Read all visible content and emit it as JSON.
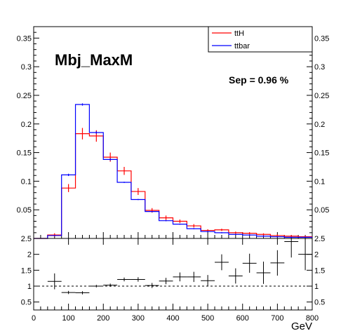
{
  "chart_data": [
    {
      "type": "histogram",
      "title": "Mbj_MaxM",
      "annotation": "Sep = 0.96 %",
      "xlabel": "GeV",
      "ylabel": "",
      "xlim": [
        0,
        800
      ],
      "ylim": [
        0,
        0.37
      ],
      "y_ticks": [
        "0.05",
        "0.1",
        "0.15",
        "0.2",
        "0.25",
        "0.3",
        "0.35"
      ],
      "y_tick_values": [
        0.05,
        0.1,
        0.15,
        0.2,
        0.25,
        0.3,
        0.35
      ],
      "legend": {
        "placement": "top-right"
      },
      "bin_edges": [
        0,
        40,
        80,
        120,
        160,
        200,
        240,
        280,
        320,
        360,
        400,
        440,
        480,
        520,
        560,
        600,
        640,
        680,
        720,
        760,
        800
      ],
      "series": [
        {
          "name": "ttH",
          "color": "#ff0000",
          "values": [
            0.0,
            0.006,
            0.088,
            0.183,
            0.179,
            0.142,
            0.118,
            0.082,
            0.049,
            0.036,
            0.03,
            0.022,
            0.014,
            0.015,
            0.01,
            0.009,
            0.007,
            0.005,
            0.004,
            0.003
          ],
          "errors": [
            0.0,
            0.003,
            0.007,
            0.01,
            0.01,
            0.008,
            0.007,
            0.006,
            0.004,
            0.004,
            0.003,
            0.003,
            0.002,
            0.002,
            0.002,
            0.002,
            0.002,
            0.002,
            0.002,
            0.002
          ]
        },
        {
          "name": "ttbar",
          "color": "#0000ff",
          "values": [
            0.0,
            0.005,
            0.111,
            0.234,
            0.185,
            0.138,
            0.098,
            0.068,
            0.047,
            0.031,
            0.025,
            0.017,
            0.012,
            0.01,
            0.007,
            0.006,
            0.004,
            0.003,
            0.002,
            0.002
          ],
          "errors": [
            0.0,
            0.001,
            0.002,
            0.002,
            0.002,
            0.002,
            0.001,
            0.001,
            0.001,
            0.001,
            0.001,
            0.001,
            0.001,
            0.001,
            0.001,
            0.001,
            0.001,
            0.001,
            0.001,
            0.001
          ]
        }
      ]
    },
    {
      "type": "scatter",
      "title": "",
      "xlabel": "GeV",
      "ylabel": "",
      "xlim": [
        0,
        800
      ],
      "ylim": [
        0.25,
        2.5
      ],
      "x_ticks": [
        "0",
        "100",
        "200",
        "300",
        "400",
        "500",
        "600",
        "700",
        "800"
      ],
      "x_tick_values": [
        0,
        100,
        200,
        300,
        400,
        500,
        600,
        700,
        800
      ],
      "y_ticks": [
        "0.5",
        "1",
        "1.5",
        "2",
        "2.5"
      ],
      "y_tick_values": [
        0.5,
        1,
        1.5,
        2,
        2.5
      ],
      "reference_line": 1,
      "series": [
        {
          "name": "",
          "x": [
            60,
            100,
            140,
            180,
            220,
            260,
            300,
            340,
            380,
            420,
            460,
            500,
            540,
            580,
            620,
            660,
            700,
            740,
            780
          ],
          "values": [
            1.15,
            0.8,
            0.79,
            1.0,
            1.03,
            1.21,
            1.21,
            1.02,
            1.16,
            1.29,
            1.29,
            1.17,
            1.75,
            1.32,
            1.72,
            1.42,
            1.73,
            2.4,
            2.0
          ],
          "x_errors": [
            20,
            20,
            20,
            20,
            20,
            20,
            20,
            20,
            20,
            20,
            20,
            20,
            20,
            20,
            20,
            20,
            20,
            20,
            20
          ],
          "y_errors": [
            0.25,
            0.05,
            0.05,
            0.04,
            0.05,
            0.06,
            0.07,
            0.08,
            0.1,
            0.14,
            0.16,
            0.18,
            0.25,
            0.24,
            0.3,
            0.35,
            0.4,
            0.5,
            0.5
          ]
        }
      ]
    }
  ]
}
